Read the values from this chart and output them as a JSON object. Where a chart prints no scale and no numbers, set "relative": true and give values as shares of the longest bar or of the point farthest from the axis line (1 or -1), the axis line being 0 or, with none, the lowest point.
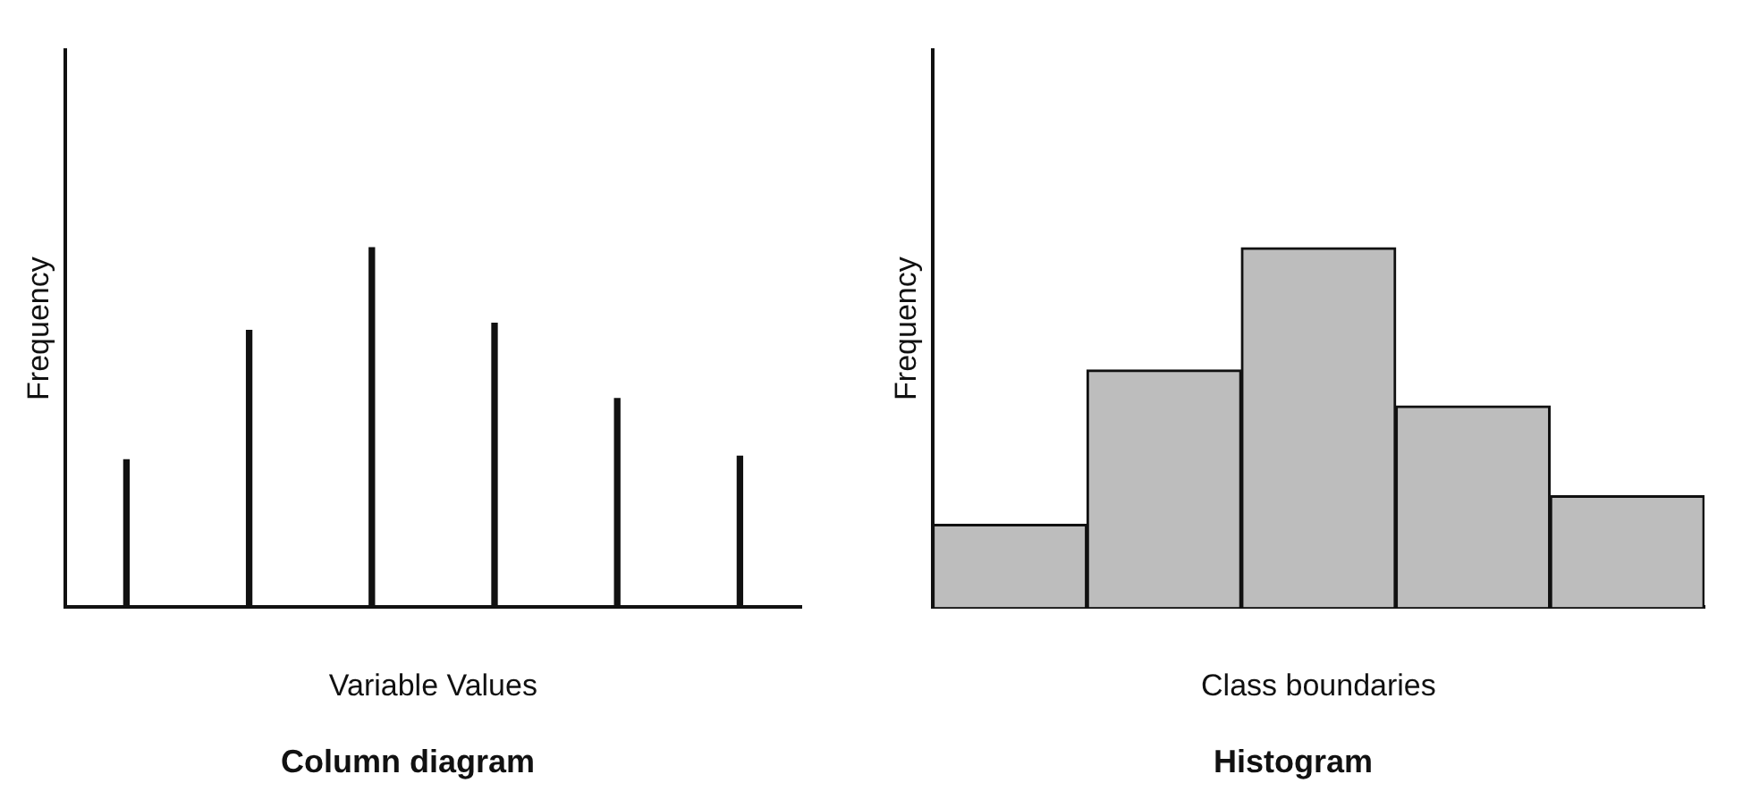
{
  "chart_data": [
    {
      "type": "bar",
      "title": "Column diagram",
      "xlabel": "Variable Values",
      "ylabel": "Frequency",
      "relative": true,
      "categories": [
        null,
        null,
        null,
        null,
        null,
        null
      ],
      "values": [
        0.41,
        0.77,
        1,
        0.79,
        0.58,
        0.42
      ],
      "color": "#111111",
      "grid": false,
      "legend": false
    },
    {
      "type": "bar",
      "title": "Histogram",
      "xlabel": "Class boundaries",
      "ylabel": "Frequency",
      "relative": true,
      "categories": [
        null,
        null,
        null,
        null,
        null
      ],
      "values": [
        0.23,
        0.66,
        1,
        0.56,
        0.31
      ],
      "color": "#bdbdbd",
      "grid": false,
      "legend": false
    }
  ]
}
